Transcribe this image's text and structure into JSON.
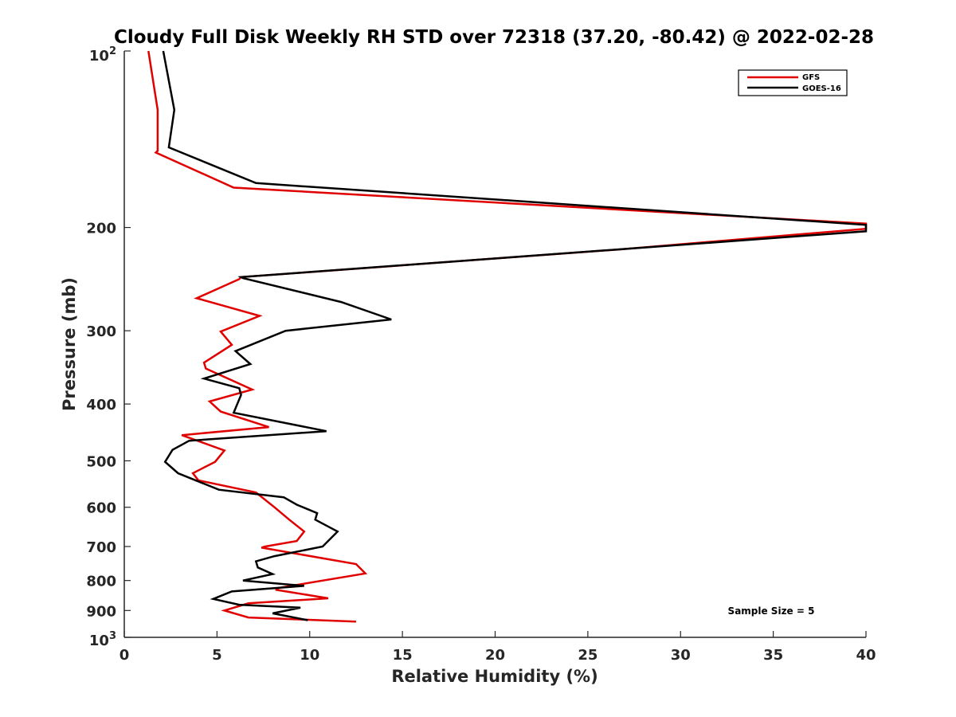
{
  "chart_data": {
    "type": "line",
    "title": "Cloudy Full Disk Weekly RH STD over 72318 (37.20, -80.42) @ 2022-02-28",
    "xlabel": "Relative Humidity (%)",
    "ylabel": "Pressure (mb)",
    "xlim": [
      0,
      40
    ],
    "ylim": [
      100,
      1000
    ],
    "yscale": "log",
    "y_reversed": true,
    "x_ticks": [
      0,
      5,
      10,
      15,
      20,
      25,
      30,
      35,
      40
    ],
    "x_tick_labels": [
      "0",
      "5",
      "10",
      "15",
      "20",
      "25",
      "30",
      "35",
      "40"
    ],
    "y_ticks": [
      200,
      300,
      400,
      500,
      600,
      700,
      800,
      900
    ],
    "y_tick_labels": [
      "200",
      "300",
      "400",
      "500",
      "600",
      "700",
      "800",
      "900"
    ],
    "y_tick_top": {
      "base": "10",
      "exp": "2"
    },
    "y_tick_bottom": {
      "base": "10",
      "exp": "3"
    },
    "legend": {
      "position": "top-right",
      "entries": [
        "GFS",
        "GOES-16"
      ]
    },
    "annotation": "Sample Size = 5",
    "series": [
      {
        "name": "GFS",
        "color": "#e00000",
        "x": [
          1.3,
          1.8,
          1.8,
          1.7,
          5.9,
          40.0,
          40.0,
          26.7,
          6.3,
          6.2,
          3.9,
          7.3,
          5.2,
          5.8,
          4.3,
          4.4,
          6.9,
          4.6,
          5.2,
          7.8,
          3.1,
          5.4,
          4.9,
          3.7,
          4.0,
          7.1,
          8.1,
          8.9,
          9.7,
          9.3,
          7.6,
          7.4,
          12.5,
          13.0,
          8.2,
          8.2,
          11.0,
          6.7,
          5.4,
          6.7,
          12.5
        ],
        "y": [
          100,
          126,
          148,
          149,
          171,
          197,
          201,
          218,
          243,
          245,
          264,
          283,
          301,
          317,
          340,
          348,
          378,
          396,
          412,
          438,
          452,
          480,
          502,
          525,
          540,
          566,
          600,
          630,
          660,
          685,
          700,
          703,
          750,
          778,
          825,
          830,
          858,
          875,
          900,
          925,
          940
        ]
      },
      {
        "name": "GOES-16",
        "color": "#000000",
        "x": [
          2.1,
          2.7,
          2.4,
          7.1,
          40.0,
          40.0,
          6.3,
          6.4,
          11.7,
          14.4,
          8.7,
          6.0,
          6.8,
          4.3,
          6.2,
          6.3,
          5.9,
          10.9,
          3.5,
          2.6,
          2.2,
          2.9,
          5.1,
          8.6,
          9.3,
          10.4,
          10.3,
          11.5,
          10.7,
          8.1,
          7.1,
          7.2,
          8.0,
          6.4,
          9.7,
          5.8,
          4.8,
          6.2,
          9.5,
          8.0,
          9.9
        ],
        "y": [
          100,
          126,
          146,
          168,
          198,
          203,
          243,
          244,
          268,
          287,
          300,
          325,
          342,
          362,
          376,
          386,
          414,
          445,
          462,
          479,
          502,
          525,
          560,
          577,
          594,
          614,
          630,
          660,
          700,
          727,
          742,
          760,
          780,
          800,
          817,
          835,
          860,
          880,
          890,
          910,
          935
        ]
      }
    ]
  }
}
